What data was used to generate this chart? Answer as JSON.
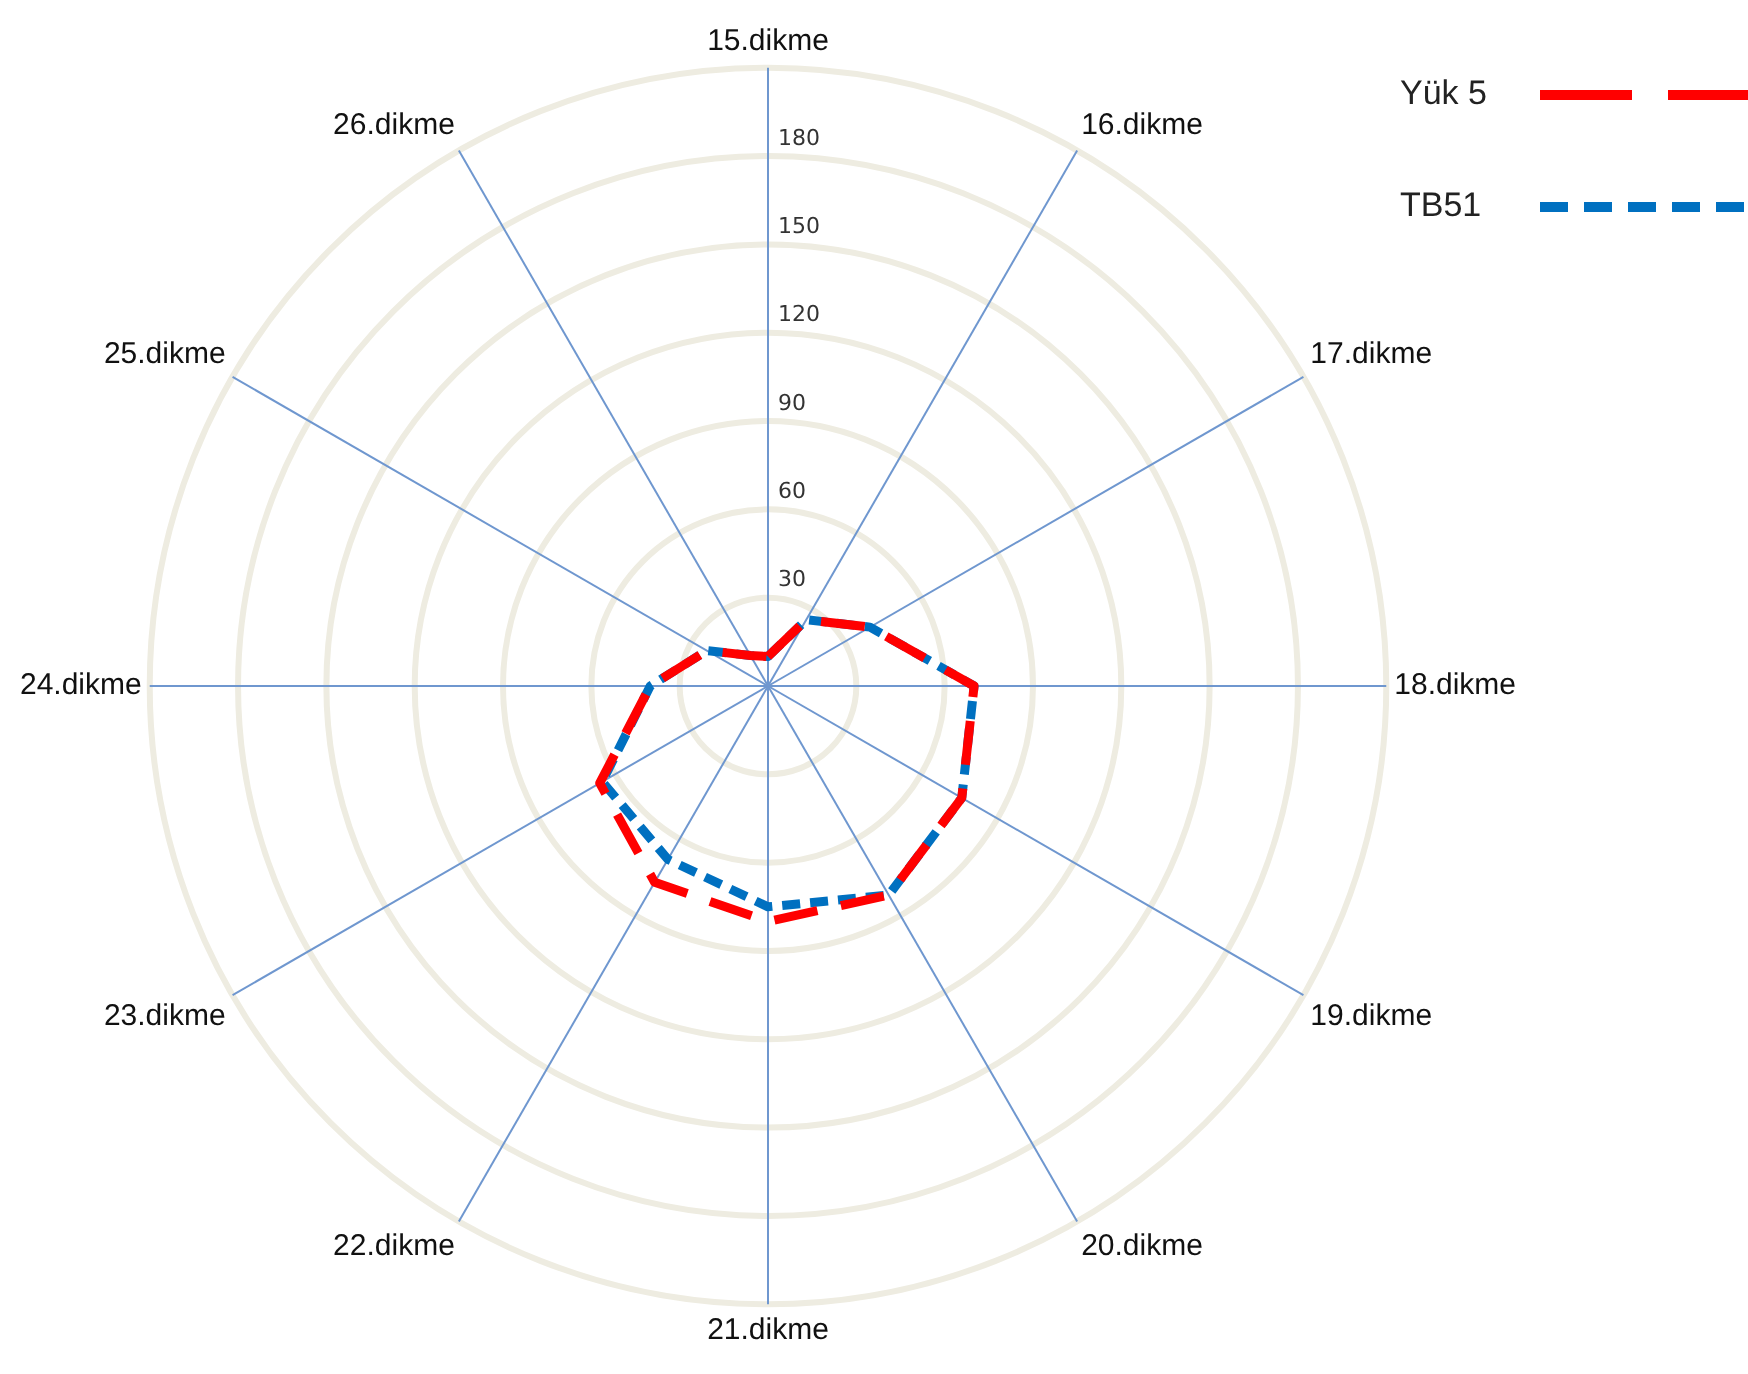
{
  "chart_data": {
    "type": "radar",
    "categories": [
      "15.dikme",
      "16.dikme",
      "17.dikme",
      "18.dikme",
      "19.dikme",
      "20.dikme",
      "21.dikme",
      "22.dikme",
      "23.dikme",
      "24.dikme",
      "25.dikme",
      "26.dikme"
    ],
    "series": [
      {
        "name": "Yük 5",
        "color": "#ff0000",
        "line_style": "dashed",
        "values": [
          10,
          26,
          40,
          70,
          76,
          82,
          80,
          77,
          66,
          40,
          24,
          12
        ]
      },
      {
        "name": "TB51",
        "color": "#0070c0",
        "line_style": "dotted",
        "values": [
          10,
          26,
          40,
          70,
          76,
          82,
          75,
          68,
          65,
          40,
          24,
          12
        ]
      }
    ],
    "ylim": [
      0,
      210
    ],
    "yticks": [
      30,
      60,
      90,
      120,
      150,
      180
    ],
    "grid": true,
    "legend": "top right",
    "marker": "none"
  }
}
